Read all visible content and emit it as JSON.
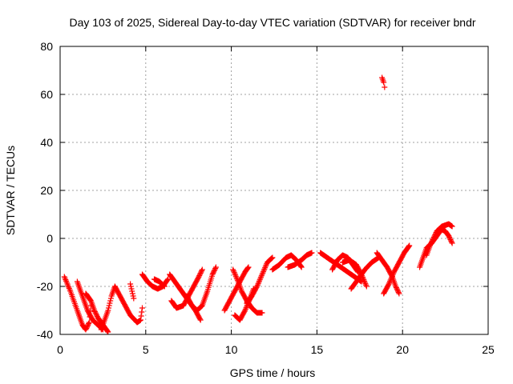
{
  "chart_data": {
    "type": "scatter",
    "title": "Day 103 of 2025, Sidereal Day-to-day VTEC variation (SDTVAR) for receiver bndr",
    "xlabel": "GPS time / hours",
    "ylabel": "SDTVAR / TECUs",
    "xlim": [
      0,
      25
    ],
    "ylim": [
      -40,
      80
    ],
    "xticks": [
      0,
      5,
      10,
      15,
      20,
      25
    ],
    "yticks": [
      -40,
      -20,
      0,
      20,
      40,
      60,
      80
    ],
    "grid": true,
    "marker": "+",
    "color": "#ff0000",
    "arcs": [
      [
        [
          0.25,
          -16
        ],
        [
          0.6,
          -22
        ],
        [
          1.0,
          -30
        ],
        [
          1.3,
          -36
        ],
        [
          1.5,
          -38
        ],
        [
          1.7,
          -35
        ],
        [
          1.8,
          -28
        ]
      ],
      [
        [
          1.0,
          -18
        ],
        [
          1.3,
          -24
        ],
        [
          1.6,
          -30
        ],
        [
          1.9,
          -34
        ],
        [
          2.2,
          -36
        ],
        [
          2.5,
          -38
        ]
      ],
      [
        [
          1.5,
          -23
        ],
        [
          1.8,
          -26
        ],
        [
          2.0,
          -30
        ],
        [
          2.2,
          -33
        ],
        [
          2.5,
          -36
        ],
        [
          2.8,
          -39
        ]
      ],
      [
        [
          2.4,
          -38
        ],
        [
          2.6,
          -34
        ],
        [
          2.8,
          -30
        ],
        [
          3.0,
          -24
        ],
        [
          3.2,
          -20
        ]
      ],
      [
        [
          3.2,
          -20
        ],
        [
          3.5,
          -24
        ],
        [
          3.8,
          -28
        ],
        [
          4.1,
          -32
        ],
        [
          4.5,
          -35
        ],
        [
          4.7,
          -34
        ],
        [
          4.8,
          -29
        ]
      ],
      [
        [
          4.1,
          -19
        ],
        [
          4.2,
          -22
        ],
        [
          4.3,
          -25
        ]
      ],
      [
        [
          4.8,
          -15
        ],
        [
          5.1,
          -18
        ],
        [
          5.4,
          -20
        ],
        [
          5.7,
          -21
        ],
        [
          6.0,
          -20
        ],
        [
          6.3,
          -17
        ]
      ],
      [
        [
          5.5,
          -17
        ],
        [
          5.8,
          -18
        ],
        [
          6.1,
          -20
        ]
      ],
      [
        [
          6.4,
          -15
        ],
        [
          6.7,
          -18
        ],
        [
          7.0,
          -21
        ],
        [
          7.3,
          -24
        ],
        [
          7.6,
          -27
        ],
        [
          7.9,
          -30
        ],
        [
          8.2,
          -34
        ]
      ],
      [
        [
          6.5,
          -26
        ],
        [
          6.8,
          -29
        ],
        [
          7.2,
          -28
        ],
        [
          7.5,
          -24
        ],
        [
          7.8,
          -20
        ],
        [
          8.1,
          -16
        ],
        [
          8.3,
          -13
        ]
      ],
      [
        [
          7.4,
          -24
        ],
        [
          7.7,
          -28
        ],
        [
          8.0,
          -30
        ],
        [
          8.3,
          -28
        ],
        [
          8.6,
          -22
        ],
        [
          8.9,
          -15
        ],
        [
          9.1,
          -12
        ]
      ],
      [
        [
          9.6,
          -30
        ],
        [
          9.9,
          -26
        ],
        [
          10.2,
          -22
        ],
        [
          10.5,
          -18
        ],
        [
          10.8,
          -14
        ],
        [
          11.0,
          -12
        ]
      ],
      [
        [
          10.1,
          -13
        ],
        [
          10.4,
          -18
        ],
        [
          10.6,
          -22
        ],
        [
          10.9,
          -26
        ],
        [
          11.2,
          -29
        ],
        [
          11.5,
          -31
        ],
        [
          11.8,
          -31
        ]
      ],
      [
        [
          10.2,
          -32
        ],
        [
          10.5,
          -34
        ],
        [
          10.8,
          -30
        ],
        [
          11.1,
          -25
        ],
        [
          11.3,
          -21
        ]
      ],
      [
        [
          10.9,
          -27
        ],
        [
          11.2,
          -24
        ],
        [
          11.5,
          -20
        ],
        [
          11.8,
          -15
        ],
        [
          12.1,
          -10
        ],
        [
          12.4,
          -8
        ]
      ],
      [
        [
          12.4,
          -13
        ],
        [
          12.8,
          -11
        ],
        [
          13.2,
          -8
        ],
        [
          13.5,
          -7
        ],
        [
          13.8,
          -9
        ],
        [
          14.1,
          -12
        ]
      ],
      [
        [
          13.3,
          -12
        ],
        [
          13.7,
          -11
        ],
        [
          14.1,
          -9
        ],
        [
          14.4,
          -7
        ],
        [
          14.7,
          -6
        ]
      ],
      [
        [
          15.2,
          -6
        ],
        [
          15.6,
          -8
        ],
        [
          16.0,
          -10
        ],
        [
          16.4,
          -12
        ],
        [
          16.8,
          -14
        ],
        [
          17.2,
          -16
        ],
        [
          17.6,
          -18
        ]
      ],
      [
        [
          15.9,
          -13
        ],
        [
          16.2,
          -9
        ],
        [
          16.5,
          -7
        ],
        [
          16.8,
          -8
        ],
        [
          17.1,
          -11
        ],
        [
          17.4,
          -14
        ]
      ],
      [
        [
          16.5,
          -10
        ],
        [
          16.9,
          -9
        ],
        [
          17.3,
          -11
        ],
        [
          17.6,
          -15
        ],
        [
          17.9,
          -20
        ]
      ],
      [
        [
          17.0,
          -21
        ],
        [
          17.4,
          -17
        ],
        [
          17.8,
          -13
        ],
        [
          18.2,
          -10
        ],
        [
          18.6,
          -8
        ]
      ],
      [
        [
          18.5,
          -6
        ],
        [
          18.8,
          -9
        ],
        [
          19.1,
          -12
        ],
        [
          19.4,
          -16
        ],
        [
          19.6,
          -20
        ],
        [
          19.8,
          -23
        ]
      ],
      [
        [
          18.9,
          -23
        ],
        [
          19.2,
          -19
        ],
        [
          19.5,
          -14
        ],
        [
          19.8,
          -10
        ],
        [
          20.1,
          -6
        ],
        [
          20.4,
          -3
        ]
      ],
      [
        [
          18.8,
          67
        ],
        [
          18.9,
          65
        ],
        [
          18.95,
          63
        ]
      ],
      [
        [
          21.0,
          -12
        ],
        [
          21.2,
          -8
        ],
        [
          21.4,
          -4
        ],
        [
          21.7,
          -2
        ],
        [
          22.0,
          1
        ],
        [
          22.3,
          4
        ]
      ],
      [
        [
          21.4,
          -7
        ],
        [
          21.6,
          -3
        ],
        [
          21.8,
          0
        ],
        [
          22.0,
          3
        ],
        [
          22.3,
          5
        ],
        [
          22.7,
          6
        ],
        [
          22.9,
          5
        ]
      ],
      [
        [
          22.2,
          4
        ],
        [
          22.5,
          3
        ],
        [
          22.7,
          1
        ],
        [
          22.9,
          -2
        ]
      ]
    ]
  }
}
